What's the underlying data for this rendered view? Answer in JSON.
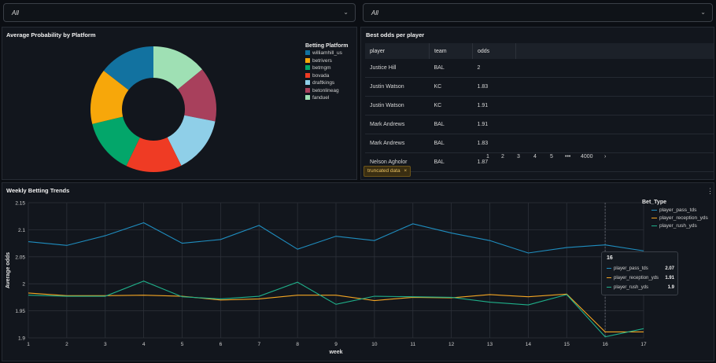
{
  "filters": [
    {
      "value": "All"
    },
    {
      "value": "All"
    }
  ],
  "pie_panel": {
    "title": "Average Probability by Platform",
    "legend_title": "Betting Platform",
    "legend": [
      {
        "label": "williamhill_us",
        "color": "#1272a0"
      },
      {
        "label": "betrivers",
        "color": "#f7a70a"
      },
      {
        "label": "betmgm",
        "color": "#03a66a"
      },
      {
        "label": "bovada",
        "color": "#ef3b24"
      },
      {
        "label": "draftkings",
        "color": "#8fcfe8"
      },
      {
        "label": "betonlineag",
        "color": "#a8405c"
      },
      {
        "label": "fanduel",
        "color": "#9fe0b4"
      }
    ]
  },
  "table_panel": {
    "title": "Best odds per player",
    "columns": [
      "player",
      "team",
      "odds"
    ],
    "rows": [
      {
        "player": "Justice Hill",
        "team": "BAL",
        "odds": "2"
      },
      {
        "player": "Justin Watson",
        "team": "KC",
        "odds": "1.83"
      },
      {
        "player": "Justin Watson",
        "team": "KC",
        "odds": "1.91"
      },
      {
        "player": "Mark Andrews",
        "team": "BAL",
        "odds": "1.91"
      },
      {
        "player": "Mark Andrews",
        "team": "BAL",
        "odds": "1.83"
      },
      {
        "player": "Nelson Agholor",
        "team": "BAL",
        "odds": "1.87"
      }
    ],
    "pagination": [
      "1",
      "2",
      "3",
      "4",
      "5",
      "•••",
      "4000",
      "›"
    ],
    "truncated_label": "truncated data",
    "truncated_close": "×"
  },
  "trend_panel": {
    "title": "Weekly Betting Trends",
    "menu_icon": "kebab-menu-icon",
    "legend_title": "Bet_Type",
    "tooltip": {
      "title": "16",
      "rows": [
        {
          "label": "player_pass_tds",
          "value": "2.07"
        },
        {
          "label": "player_reception_yds",
          "value": "1.91"
        },
        {
          "label": "player_rush_yds",
          "value": "1.9"
        }
      ]
    }
  },
  "chart_data": [
    {
      "type": "pie",
      "title": "Average Probability by Platform",
      "categories": [
        "williamhill_us",
        "betrivers",
        "betmgm",
        "bovada",
        "draftkings",
        "betonlineag",
        "fanduel"
      ],
      "values": [
        14.5,
        14.3,
        14.1,
        14.4,
        14.6,
        14.0,
        14.1
      ],
      "donut": true,
      "legend_title": "Betting Platform",
      "legend_placement": "right"
    },
    {
      "type": "line",
      "title": "Weekly Betting Trends",
      "xlabel": "week",
      "ylabel": "Average odds",
      "x": [
        1,
        2,
        3,
        4,
        5,
        6,
        7,
        8,
        9,
        10,
        11,
        12,
        13,
        14,
        15,
        16,
        17
      ],
      "xlim": [
        1,
        17
      ],
      "ylim": [
        1.9,
        2.15
      ],
      "yticks": [
        "2.15",
        "2.1",
        "2.05",
        "2",
        "1.95",
        "1.9"
      ],
      "grid": true,
      "legend_title": "Bet_Type",
      "legend_placement": "right",
      "series": [
        {
          "name": "player_pass_tds",
          "color": "#1f8ec0",
          "values": [
            2.078,
            2.071,
            2.089,
            2.113,
            2.075,
            2.082,
            2.108,
            2.064,
            2.088,
            2.08,
            2.111,
            2.094,
            2.08,
            2.057,
            2.067,
            2.072,
            2.061
          ]
        },
        {
          "name": "player_reception_yds",
          "color": "#f5a623",
          "values": [
            1.983,
            1.978,
            1.978,
            1.979,
            1.977,
            1.97,
            1.972,
            1.979,
            1.979,
            1.969,
            1.975,
            1.974,
            1.98,
            1.976,
            1.981,
            1.911,
            1.911
          ]
        },
        {
          "name": "player_rush_yds",
          "color": "#1fb08a",
          "values": [
            1.979,
            1.977,
            1.977,
            2.005,
            1.976,
            1.972,
            1.977,
            2.003,
            1.962,
            1.977,
            1.976,
            1.975,
            1.966,
            1.961,
            1.98,
            1.902,
            1.917
          ]
        }
      ]
    }
  ]
}
